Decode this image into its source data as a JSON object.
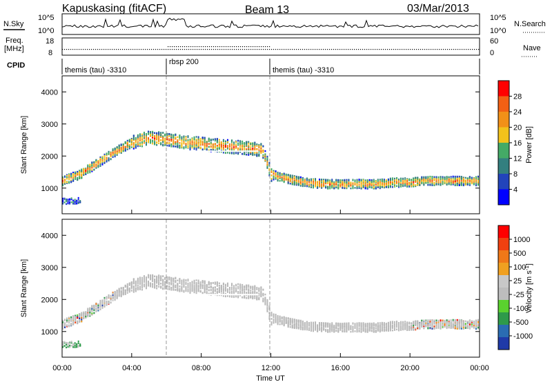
{
  "header": {
    "station": "Kapuskasing (fitACF)",
    "beam": "Beam 13",
    "date": "03/Mar/2013"
  },
  "top_strips": {
    "nsky": {
      "left_label": "N.Sky",
      "left_ticks": [
        "10^5",
        "10^0"
      ],
      "right_label": "N.Search",
      "right_ticks": [
        "10^5",
        "10^0"
      ]
    },
    "freq": {
      "left_label_1": "Freq.",
      "left_label_2": "[MHz]",
      "left_ticks": [
        "18",
        "8"
      ],
      "right_label": "Nave",
      "right_ticks": [
        "60",
        "0"
      ]
    },
    "cpid": {
      "label": "CPID",
      "segments": [
        {
          "name": "themis (tau) -3310",
          "start_hour": 0,
          "end_hour": 6
        },
        {
          "name": "rbsp 200",
          "start_hour": 6,
          "end_hour": 12
        },
        {
          "name": "themis (tau) -3310",
          "start_hour": 12,
          "end_hour": 24
        }
      ]
    }
  },
  "colors": {
    "power_scale": [
      "#0000ff",
      "#2244bb",
      "#337f7f",
      "#44aa66",
      "#f2c21b",
      "#f29018",
      "#f26014",
      "#ff0000"
    ],
    "velocity_scale": [
      "#1f3aa8",
      "#2a6cb2",
      "#2e9a4a",
      "#5ad12e",
      "#bdbdbd",
      "#c8c8c8",
      "#f0a020",
      "#f07818",
      "#f04010",
      "#ff0000"
    ],
    "ground_scatter": "#b9b9b9"
  },
  "chart_data": [
    {
      "panel": "Power",
      "type": "heatmap",
      "title": "",
      "ylabel": "Slant Range [km]",
      "xlabel": "",
      "x_unit": "hours UT",
      "xlim": [
        0,
        24
      ],
      "ylim": [
        200,
        4500
      ],
      "yticks": [
        1000,
        2000,
        3000,
        4000
      ],
      "colorbar": {
        "label": "Power [dB]",
        "ticks": [
          "28",
          "24",
          "20",
          "16",
          "12",
          "8",
          "4"
        ],
        "range": [
          0,
          30
        ]
      },
      "echo_band_center_km": [
        [
          0,
          1250
        ],
        [
          1,
          1450
        ],
        [
          2,
          1800
        ],
        [
          3,
          2150
        ],
        [
          4,
          2450
        ],
        [
          5,
          2600
        ],
        [
          6,
          2550
        ],
        [
          7,
          2450
        ],
        [
          8,
          2400
        ],
        [
          9,
          2350
        ],
        [
          10,
          2300
        ],
        [
          11,
          2250
        ],
        [
          11.5,
          2200
        ],
        [
          12,
          1450
        ],
        [
          13,
          1300
        ],
        [
          14,
          1200
        ],
        [
          15,
          1150
        ],
        [
          16,
          1150
        ],
        [
          17,
          1150
        ],
        [
          18,
          1150
        ],
        [
          19,
          1200
        ],
        [
          20,
          1200
        ],
        [
          21,
          1250
        ],
        [
          22,
          1250
        ],
        [
          23,
          1250
        ],
        [
          24,
          1250
        ]
      ],
      "near_range_patch": {
        "x": [
          0,
          1
        ],
        "y": [
          520,
          720
        ]
      }
    },
    {
      "panel": "Velocity",
      "type": "heatmap",
      "title": "",
      "ylabel": "Slant Range [km]",
      "xlabel": "Time UT",
      "x_unit": "hours UT",
      "xlim": [
        0,
        24
      ],
      "ylim": [
        200,
        4500
      ],
      "xticks": [
        "00:00",
        "04:00",
        "08:00",
        "12:00",
        "16:00",
        "20:00",
        "00:00"
      ],
      "yticks": [
        1000,
        2000,
        3000,
        4000
      ],
      "colorbar": {
        "label": "Velocity [m s",
        "label_exp": "-1",
        "ticks": [
          "1000",
          "500",
          "100",
          "25",
          "-25",
          "-100",
          "-500",
          "-1000"
        ]
      }
    }
  ]
}
